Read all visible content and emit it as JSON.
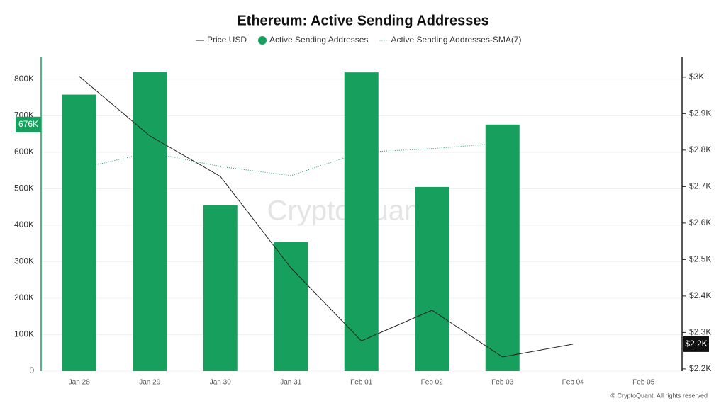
{
  "chart_data": {
    "type": "bar_line",
    "title": "Ethereum: Active Sending Addresses",
    "watermark": "CryptoQuant",
    "footer": "© CryptoQuant. All rights reserved",
    "categories": [
      "Jan 28",
      "Jan 29",
      "Jan 30",
      "Jan 31",
      "Feb 01",
      "Feb 02",
      "Feb 03",
      "Feb 04",
      "Feb 05"
    ],
    "series": [
      {
        "name": "Price USD",
        "type": "line",
        "axis": "y2",
        "color": "#222222",
        "values": [
          3002,
          2839,
          2728,
          2477,
          2277,
          2361,
          2233,
          2268,
          null
        ]
      },
      {
        "name": "Active Sending Addresses",
        "type": "bar",
        "axis": "y",
        "color": "#17a05d",
        "values": [
          758000,
          820000,
          455000,
          354000,
          819000,
          505000,
          676000,
          null,
          null
        ]
      },
      {
        "name": "Active Sending Addresses-SMA(7)",
        "type": "dotted-line",
        "axis": "y",
        "color": "#17a05d",
        "values": [
          555000,
          600000,
          561000,
          536000,
          600000,
          610000,
          625000,
          null,
          null
        ]
      }
    ],
    "ylim": [
      0,
      862000
    ],
    "yticks": [
      0,
      {
        "value": 100000,
        "label": "100K"
      },
      {
        "value": 200000,
        "label": "200K"
      },
      {
        "value": 300000,
        "label": "300K"
      },
      {
        "value": 400000,
        "label": "400K"
      },
      {
        "value": 500000,
        "label": "500K"
      },
      {
        "value": 600000,
        "label": "600K"
      },
      {
        "value": 700000,
        "label": "700K"
      },
      {
        "value": 800000,
        "label": "800K"
      }
    ],
    "y2lim": [
      2194,
      3056
    ],
    "y2ticks": [
      {
        "value": 2200,
        "label": "$2.2K"
      },
      {
        "value": 2300,
        "label": "$2.3K"
      },
      {
        "value": 2400,
        "label": "$2.4K"
      },
      {
        "value": 2500,
        "label": "$2.5K"
      },
      {
        "value": 2600,
        "label": "$2.6K"
      },
      {
        "value": 2700,
        "label": "$2.7K"
      },
      {
        "value": 2800,
        "label": "$2.8K"
      },
      {
        "value": 2900,
        "label": "$2.9K"
      },
      {
        "value": 3000,
        "label": "$3K"
      }
    ],
    "y_marker_label": "676K",
    "y2_marker_label": "$2.2K",
    "grid": true
  }
}
